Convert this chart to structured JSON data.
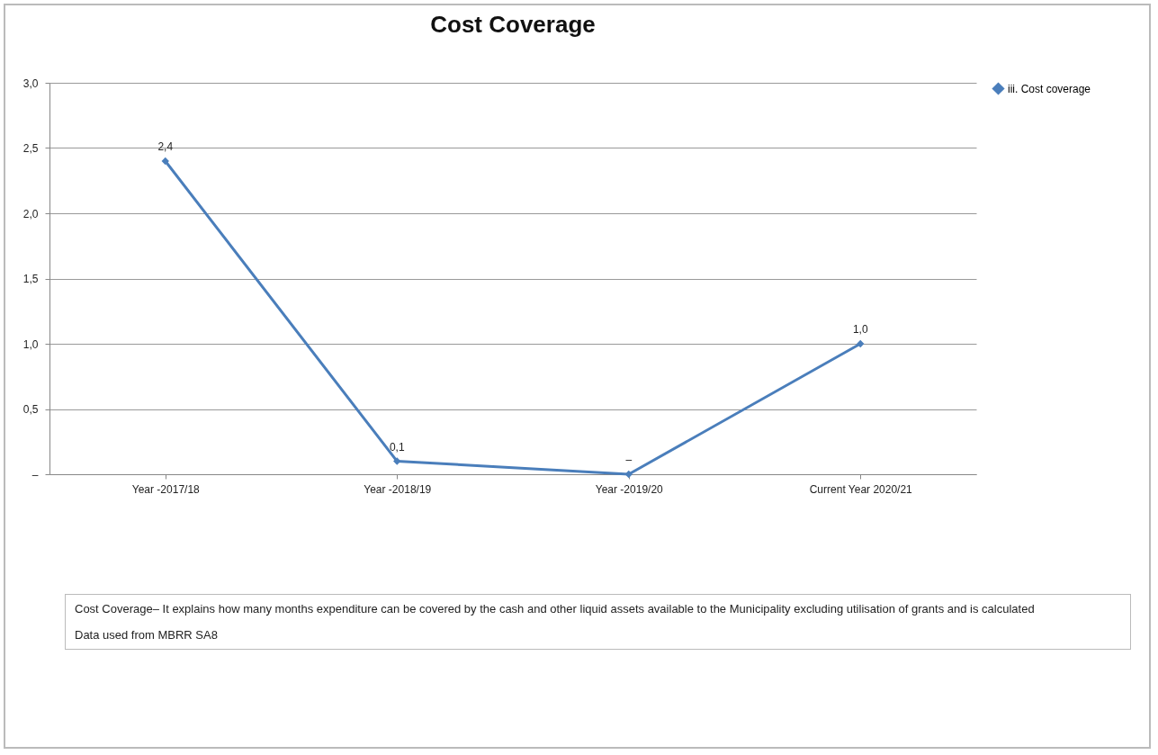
{
  "chart_data": {
    "type": "line",
    "title": "Cost Coverage",
    "categories": [
      "Year -2017/18",
      "Year -2018/19",
      "Year -2019/20",
      "Current Year 2020/21"
    ],
    "series": [
      {
        "name": "iii. Cost coverage",
        "color": "#4a7ebb",
        "values": [
          2.4,
          0.1,
          0,
          1.0
        ],
        "value_labels": [
          "2,4",
          "0,1",
          "–",
          "1,0"
        ]
      }
    ],
    "ylim": [
      0,
      3
    ],
    "yticks": [
      {
        "value": 0,
        "label": "–"
      },
      {
        "value": 0.5,
        "label": "0,5"
      },
      {
        "value": 1,
        "label": "1,0"
      },
      {
        "value": 1.5,
        "label": "1,5"
      },
      {
        "value": 2,
        "label": "2,0"
      },
      {
        "value": 2.5,
        "label": "2,5"
      },
      {
        "value": 3,
        "label": "3,0"
      }
    ],
    "grid": "y",
    "legend": "right",
    "marker": "diamond",
    "line_style": "solid",
    "annotations": [
      "Cost Coverage– It explains how many months expenditure can be covered by the  cash and other liquid assets available to the Municipality excluding utilisation of grants and is calculated",
      "Data used from MBRR SA8"
    ]
  }
}
